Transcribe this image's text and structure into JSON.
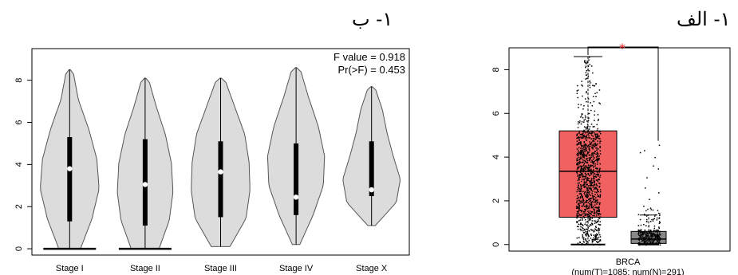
{
  "panels": {
    "left_label": "١- ب",
    "right_label": "١- الف"
  },
  "chart_data": [
    {
      "type": "violin",
      "panel": "١- ب",
      "categories": [
        "Stage I",
        "Stage II",
        "Stage III",
        "Stage IV",
        "Stage X"
      ],
      "ylim": [
        -0.3,
        9.5
      ],
      "yticks": [
        0,
        2,
        4,
        6,
        8
      ],
      "annotations": [
        "F value = 0.918",
        "Pr(>F) = 0.453"
      ],
      "stats": [
        {
          "category": "Stage I",
          "min": 0.0,
          "max": 8.5,
          "q1": 1.3,
          "q3": 5.3,
          "median": 3.8
        },
        {
          "category": "Stage II",
          "min": 0.0,
          "max": 8.1,
          "q1": 1.1,
          "q3": 5.2,
          "median": 3.05
        },
        {
          "category": "Stage III",
          "min": 0.1,
          "max": 8.1,
          "q1": 1.5,
          "q3": 5.1,
          "median": 3.65
        },
        {
          "category": "Stage IV",
          "min": 0.2,
          "max": 8.6,
          "q1": 1.6,
          "q3": 5.0,
          "median": 2.45
        },
        {
          "category": "Stage X",
          "min": 1.1,
          "max": 7.7,
          "q1": 2.5,
          "q3": 5.1,
          "median": 2.8
        }
      ],
      "fill": "#dcdcdc",
      "line": "#555555"
    },
    {
      "type": "box",
      "panel": "١- الف",
      "xlabel": "BRCA",
      "xsublabel": "(num(T)=1085; num(N)=291)",
      "ylim": [
        -0.3,
        9.0
      ],
      "yticks": [
        0,
        2,
        4,
        6,
        8
      ],
      "significance": "*",
      "boxes": [
        {
          "group": "T",
          "min": 0.0,
          "q1": 1.25,
          "median": 3.35,
          "q3": 5.2,
          "max": 8.6,
          "n": 1085,
          "color": "#f26161"
        },
        {
          "group": "N",
          "min": 0.0,
          "q1": 0.05,
          "median": 0.25,
          "q3": 0.6,
          "max": 1.35,
          "outlier_max": 4.6,
          "n": 291,
          "color": "#888888"
        }
      ]
    }
  ]
}
